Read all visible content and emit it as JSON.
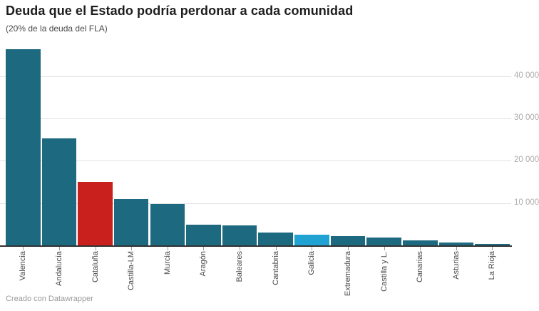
{
  "header": {
    "title": "Deuda que el Estado podría perdonar a cada comunidad",
    "subtitle": "(20% de la deuda del FLA)"
  },
  "footer": {
    "credit": "Creado con Datawrapper"
  },
  "colors": {
    "bar_default": "#1d697f",
    "bar_highlight_red": "#c9201d",
    "bar_highlight_blue": "#20a2d3",
    "gridline": "#e2e2e2",
    "axis_line": "#333333",
    "tick": "#999999",
    "y_label": "#adadad",
    "x_label": "#4a4a4a"
  },
  "chart_data": {
    "type": "bar",
    "title": "Deuda que el Estado podría perdonar a cada comunidad",
    "subtitle": "(20% de la deuda del FLA)",
    "categories": [
      "Valencia",
      "Andalucía",
      "Cataluña",
      "Castilla-LM",
      "Murcia",
      "Aragón",
      "Baleares",
      "Cantabria",
      "Galicia",
      "Extremadura",
      "Castilla y L.",
      "Canarias",
      "Asturias",
      "La Rioja"
    ],
    "values": [
      46300,
      25300,
      15000,
      11000,
      9800,
      4900,
      4800,
      3100,
      2600,
      2200,
      1800,
      1200,
      650,
      400
    ],
    "bar_color_keys": [
      "default",
      "default",
      "red",
      "default",
      "default",
      "default",
      "default",
      "default",
      "blue",
      "default",
      "default",
      "default",
      "default",
      "default"
    ],
    "xlabel": "",
    "ylabel": "",
    "ylim": [
      0,
      46500
    ],
    "yticks": [
      10000,
      20000,
      30000,
      40000
    ],
    "ytick_labels": [
      "10 000",
      "20 000",
      "30 000",
      "40 000"
    ],
    "grid": "horizontal",
    "y_axis_position": "right",
    "legend": "none"
  }
}
